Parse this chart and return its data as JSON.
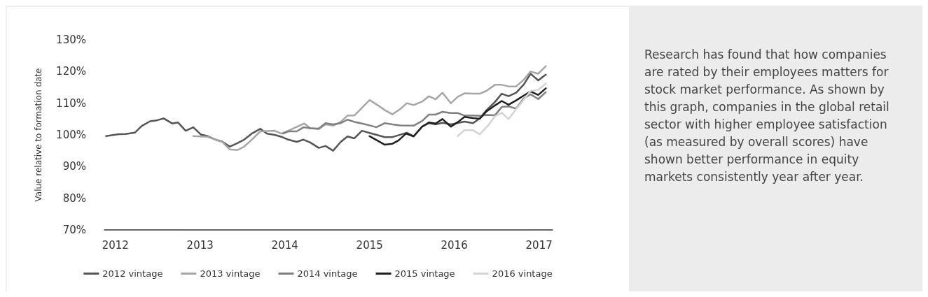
{
  "chart_data": {
    "type": "line",
    "ylabel": "Value relative to formation date",
    "xlim": [
      2011.87,
      2017.16
    ],
    "xticks": [
      2012,
      2013,
      2014,
      2015,
      2016,
      2017
    ],
    "ylim": [
      70,
      130
    ],
    "yticks": [
      {
        "value": 70,
        "label": "70%"
      },
      {
        "value": 80,
        "label": "80%"
      },
      {
        "value": 90,
        "label": "90%"
      },
      {
        "value": 100,
        "label": "100%"
      },
      {
        "value": 110,
        "label": "110%"
      },
      {
        "value": 120,
        "label": "120%"
      },
      {
        "value": 130,
        "label": "130%"
      }
    ],
    "grid": false,
    "legend": "bottom",
    "marker": "none",
    "line_style": "solid",
    "annotations": [
      "Research has found that how companies are rated by their employees matters for stock market performance. As shown by this graph, companies in the global retail sector with higher employee satisfaction (as measured by overall scores) have shown better performance in equity markets consistently year after year."
    ],
    "series": [
      {
        "name": "2012 vintage",
        "color": "#555555",
        "x": [
          2011.89,
          2012.04,
          2012.12,
          2012.23,
          2012.31,
          2012.41,
          2012.49,
          2012.57,
          2012.67,
          2012.74,
          2012.83,
          2012.92,
          2013.01,
          2013.09,
          2013.18,
          2013.26,
          2013.35,
          2013.44,
          2013.52,
          2013.61,
          2013.71,
          2013.79,
          2013.88,
          2013.96,
          2014.04,
          2014.14,
          2014.22,
          2014.3,
          2014.4,
          2014.48,
          2014.57,
          2014.66,
          2014.74,
          2014.82,
          2014.91,
          2015.0,
          2015.18,
          2015.27,
          2015.44,
          2015.52,
          2015.62,
          2015.7,
          2015.78,
          2015.86,
          2015.96,
          2016.12,
          2016.22,
          2016.3,
          2016.38,
          2016.48,
          2016.56,
          2016.64,
          2016.73,
          2016.82,
          2016.9,
          2016.99,
          2017.08
        ],
        "values": [
          99.6,
          100.2,
          100.3,
          100.7,
          102.8,
          104.3,
          104.6,
          105.2,
          103.6,
          103.9,
          101.3,
          102.4,
          100.1,
          99.6,
          98.5,
          97.9,
          96.3,
          97.4,
          98.5,
          100.4,
          101.9,
          100.4,
          100,
          99.4,
          98.5,
          97.8,
          98.5,
          97.6,
          95.9,
          96.5,
          95,
          97.8,
          99.5,
          98.9,
          101.3,
          100.6,
          99.3,
          99.3,
          100.7,
          99.6,
          102.6,
          103.7,
          103.3,
          103.8,
          103.3,
          104.2,
          103.7,
          105.2,
          107.8,
          110.4,
          113,
          112.2,
          113.3,
          115.9,
          119.3,
          117.2,
          119
        ]
      },
      {
        "name": "2013 vintage",
        "color": "#a6a6a6",
        "x": [
          2012.92,
          2013.09,
          2013.18,
          2013.26,
          2013.35,
          2013.44,
          2013.52,
          2013.61,
          2013.71,
          2013.88,
          2013.96,
          2014.04,
          2014.23,
          2014.3,
          2014.4,
          2014.48,
          2014.57,
          2014.66,
          2014.74,
          2014.82,
          2014.91,
          2015.0,
          2015.1,
          2015.18,
          2015.27,
          2015.36,
          2015.44,
          2015.52,
          2015.62,
          2015.7,
          2015.78,
          2015.86,
          2015.96,
          2016.04,
          2016.12,
          2016.22,
          2016.3,
          2016.38,
          2016.48,
          2016.56,
          2016.64,
          2016.73,
          2016.82,
          2016.9,
          2016.99,
          2017.08
        ],
        "values": [
          99.6,
          99.4,
          98.5,
          97.8,
          95.4,
          95.2,
          96.3,
          98.5,
          101.1,
          101.3,
          100.4,
          101.3,
          103.6,
          102.1,
          101.8,
          103.3,
          102.9,
          104.1,
          106.1,
          106.1,
          108.5,
          111,
          109.3,
          107.8,
          106.5,
          108.1,
          110,
          109.4,
          110.5,
          112.2,
          111.2,
          113.3,
          110,
          112,
          113.1,
          113,
          113,
          113.9,
          115.8,
          115.8,
          115.3,
          115.3,
          117.4,
          120,
          119.3,
          121.7
        ]
      },
      {
        "name": "2014 vintage",
        "color": "#808080",
        "x": [
          2013.98,
          2014.04,
          2014.14,
          2014.22,
          2014.3,
          2014.4,
          2014.48,
          2014.57,
          2014.66,
          2014.74,
          2014.82,
          2014.91,
          2015.0,
          2015.08,
          2015.18,
          2015.27,
          2015.36,
          2015.52,
          2015.62,
          2015.7,
          2015.78,
          2015.86,
          2015.96,
          2016.04,
          2016.12,
          2016.22,
          2016.3,
          2016.38,
          2016.48,
          2016.56,
          2016.64,
          2016.73,
          2016.82,
          2016.9,
          2016.99,
          2017.08
        ],
        "values": [
          100.4,
          101.1,
          101.1,
          102.4,
          102.1,
          102,
          103.7,
          103.3,
          103.7,
          104.8,
          104.1,
          103.6,
          103,
          102.4,
          103.7,
          103.3,
          103,
          102.9,
          104.4,
          106.4,
          106.4,
          107.3,
          106.9,
          106.9,
          106.1,
          106.1,
          106,
          106.3,
          106.2,
          108.8,
          109,
          108.3,
          111.5,
          112.8,
          111.3,
          113.5
        ]
      },
      {
        "name": "2015 vintage",
        "color": "#1f1f1f",
        "x": [
          2015.0,
          2015.18,
          2015.27,
          2015.34,
          2015.43,
          2015.52,
          2015.62,
          2015.7,
          2015.78,
          2015.86,
          2015.96,
          2016.04,
          2016.12,
          2016.22,
          2016.3,
          2016.38,
          2016.48,
          2016.56,
          2016.64,
          2016.73,
          2016.82,
          2016.9,
          2016.99,
          2017.08
        ],
        "values": [
          99.6,
          96.9,
          97.2,
          98.2,
          100.4,
          99.5,
          102.6,
          103.9,
          103.6,
          105,
          102.6,
          104,
          105.7,
          105.3,
          105.1,
          107.4,
          109.3,
          110.7,
          109.5,
          110.9,
          112.4,
          113.7,
          112.6,
          114.7
        ]
      },
      {
        "name": "2016 vintage",
        "color": "#d4d4d4",
        "x": [
          2016.04,
          2016.12,
          2016.22,
          2016.3,
          2016.4,
          2016.48,
          2016.56,
          2016.64,
          2016.73,
          2016.82,
          2016.9,
          2016.99,
          2017.08
        ],
        "values": [
          99.6,
          101.5,
          101.5,
          100.2,
          103,
          105.9,
          107,
          105,
          108.1,
          111.1,
          113.9,
          114.2,
          116.2
        ]
      }
    ]
  }
}
